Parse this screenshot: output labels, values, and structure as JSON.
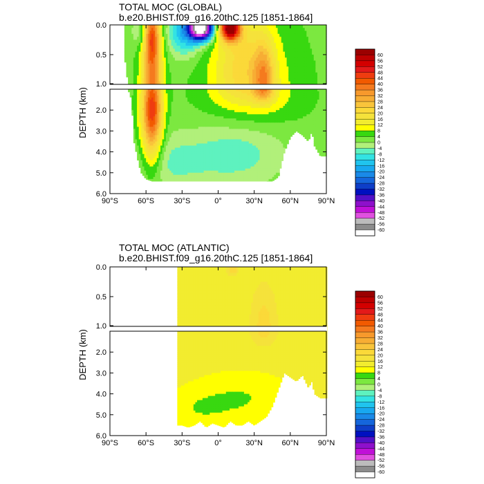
{
  "chart_data": [
    {
      "type": "heatmap",
      "panel": "global",
      "title": "TOTAL MOC (GLOBAL)",
      "subtitle": "b.e20.BHIST.f09_g16.20thC.125 [1851-1864]",
      "ylabel": "DEPTH (km)",
      "x_ticks": [
        "90°S",
        "60°S",
        "30°S",
        "0°",
        "30°N",
        "60°N",
        "90°N"
      ],
      "y_ticks": [
        "0.0",
        "0.5",
        "1.0",
        "2.0",
        "3.0",
        "4.0",
        "5.0",
        "6.0"
      ],
      "xlim": [
        -90,
        90
      ],
      "ylim": [
        0,
        6
      ],
      "y_break_km": 1.0,
      "ocean_extent": {
        "lat": [
          -78,
          -72,
          -70,
          -66,
          -64,
          -60,
          -55,
          -50,
          -45,
          -40,
          -35,
          -30,
          -25,
          -20,
          -15,
          -10,
          -5,
          0,
          5,
          10,
          15,
          20,
          25,
          30,
          35,
          40,
          45,
          50,
          55,
          60,
          65,
          70,
          75,
          78,
          80,
          85,
          90
        ],
        "max_depth_km": [
          0.5,
          1.5,
          3.5,
          4.6,
          5.0,
          5.3,
          5.4,
          5.4,
          5.4,
          5.4,
          5.4,
          5.4,
          5.4,
          5.4,
          5.4,
          5.4,
          5.4,
          5.4,
          5.4,
          5.4,
          5.4,
          5.4,
          5.4,
          5.4,
          5.4,
          5.4,
          5.4,
          5.2,
          4.0,
          3.3,
          3.0,
          3.2,
          3.5,
          3.0,
          3.7,
          4.2,
          4.2
        ]
      },
      "features": [
        {
          "lat": -55,
          "depth": 2.0,
          "value": 44,
          "sigma_lat": 6,
          "sigma_depth": 1.6
        },
        {
          "lat": -55,
          "depth": 0.2,
          "value": 20,
          "sigma_lat": 4,
          "sigma_depth": 0.3
        },
        {
          "lat": -65,
          "depth": 0.1,
          "value": -8,
          "sigma_lat": 5,
          "sigma_depth": 0.2
        },
        {
          "lat": -14,
          "depth": 0.05,
          "value": -72,
          "sigma_lat": 7,
          "sigma_depth": 0.14
        },
        {
          "lat": -28,
          "depth": 0.12,
          "value": -18,
          "sigma_lat": 10,
          "sigma_depth": 0.28
        },
        {
          "lat": 10,
          "depth": 0.05,
          "value": 58,
          "sigma_lat": 6,
          "sigma_depth": 0.15
        },
        {
          "lat": 20,
          "depth": 0.6,
          "value": 12,
          "sigma_lat": 16,
          "sigma_depth": 0.6
        },
        {
          "lat": 38,
          "depth": 0.95,
          "value": 22,
          "sigma_lat": 6,
          "sigma_depth": 0.45
        },
        {
          "lat": 28,
          "depth": 1.3,
          "value": 10,
          "sigma_lat": 26,
          "sigma_depth": 0.9
        },
        {
          "lat": 15,
          "depth": 4.1,
          "value": -9,
          "sigma_lat": 28,
          "sigma_depth": 1.1
        },
        {
          "lat": -40,
          "depth": 4.5,
          "value": -7,
          "sigma_lat": 22,
          "sigma_depth": 1.0
        }
      ],
      "background_value": 3
    },
    {
      "type": "heatmap",
      "panel": "atlantic",
      "title": "TOTAL MOC (ATLANTIC)",
      "subtitle": "b.e20.BHIST.f09_g16.20thC.125 [1851-1864]",
      "ylabel": "DEPTH (km)",
      "x_ticks": [
        "90°S",
        "60°S",
        "30°S",
        "0°",
        "30°N",
        "60°N",
        "90°N"
      ],
      "y_ticks": [
        "0.0",
        "0.5",
        "1.0",
        "2.0",
        "3.0",
        "4.0",
        "5.0",
        "6.0"
      ],
      "xlim": [
        -90,
        90
      ],
      "ylim": [
        0,
        6
      ],
      "y_break_km": 1.0,
      "ocean_extent": {
        "lat": [
          -34,
          -30,
          -25,
          -20,
          -15,
          -10,
          -5,
          0,
          5,
          10,
          15,
          20,
          25,
          30,
          35,
          40,
          45,
          50,
          55,
          60,
          65,
          70,
          75,
          78,
          80,
          85,
          90
        ],
        "max_depth_km": [
          5.5,
          5.5,
          5.6,
          5.5,
          5.3,
          5.6,
          5.4,
          5.5,
          5.6,
          5.3,
          5.5,
          5.5,
          5.3,
          5.5,
          5.3,
          5.1,
          4.6,
          3.8,
          3.0,
          3.2,
          3.4,
          3.1,
          3.7,
          3.4,
          4.0,
          4.2,
          4.2
        ]
      },
      "features": [
        {
          "lat": 38,
          "depth": 1.0,
          "value": 8,
          "sigma_lat": 7,
          "sigma_depth": 0.45
        },
        {
          "lat": 12,
          "depth": 0.05,
          "value": 10,
          "sigma_lat": 3,
          "sigma_depth": 0.06
        },
        {
          "lat": 20,
          "depth": 4.2,
          "value": -6,
          "sigma_lat": 30,
          "sigma_depth": 0.9
        },
        {
          "lat": -20,
          "depth": 4.8,
          "value": -4,
          "sigma_lat": 20,
          "sigma_depth": 0.7
        }
      ],
      "background_value": 14
    }
  ],
  "colorbar": {
    "labels": [
      "60",
      "56",
      "52",
      "48",
      "44",
      "40",
      "36",
      "32",
      "28",
      "24",
      "20",
      "16",
      "12",
      "8",
      "4",
      "0",
      "-4",
      "-8",
      "-12",
      "-16",
      "-20",
      "-24",
      "-28",
      "-32",
      "-36",
      "-40",
      "-44",
      "-48",
      "-52",
      "-56",
      "-60"
    ],
    "colors": [
      "#9b0000",
      "#bd0000",
      "#d30000",
      "#e31a1a",
      "#ef3c10",
      "#f25a00",
      "#f57a1e",
      "#f7992c",
      "#f7ad34",
      "#f9c43b",
      "#fbd939",
      "#f5e23b",
      "#f2ec2f",
      "#ffff00",
      "#38d810",
      "#7ce840",
      "#b1f07a",
      "#5ef2bf",
      "#33e3e3",
      "#20c4ee",
      "#18a8f0",
      "#1a8ae8",
      "#1566dc",
      "#0e3ec8",
      "#0010c0",
      "#5210c8",
      "#8e10cc",
      "#c010d8",
      "#e050e0",
      "#bcbcbc",
      "#8c8c8c",
      "#ffffff"
    ]
  }
}
